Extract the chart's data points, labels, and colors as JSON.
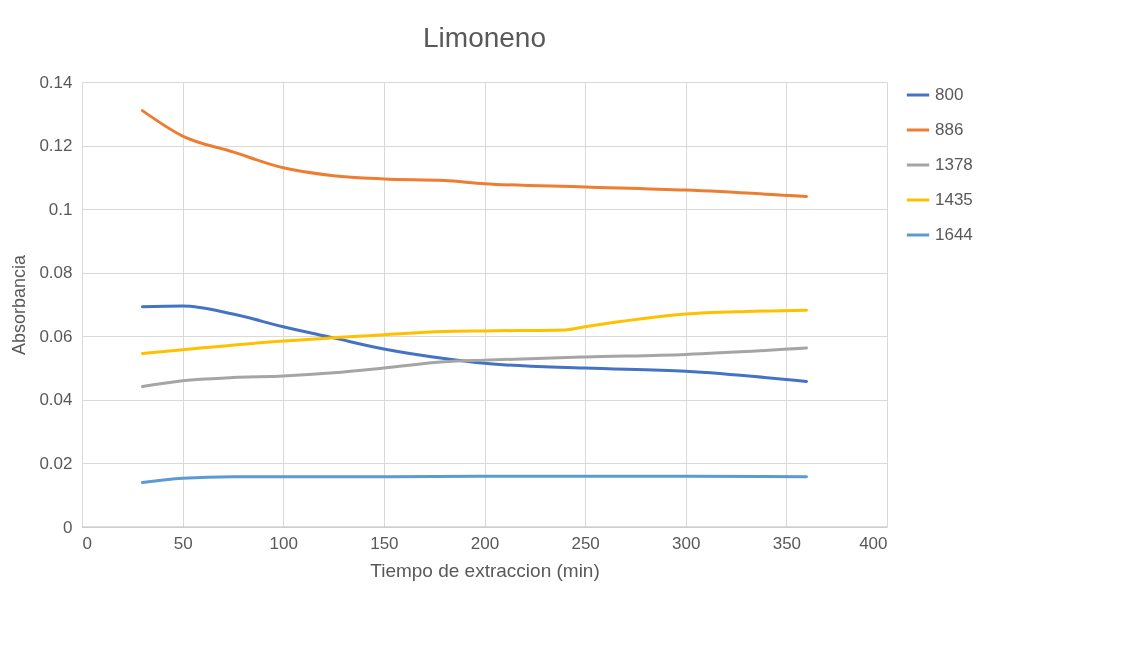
{
  "chart_data": {
    "type": "line",
    "title": "Limoneno",
    "xlabel": "Tiempo de extraccion (min)",
    "ylabel": "Absorbancia",
    "xlim": [
      0,
      400
    ],
    "xticks": [
      0,
      50,
      100,
      150,
      200,
      250,
      300,
      350,
      400
    ],
    "ylim": [
      0,
      0.14
    ],
    "yticks": [
      0,
      0.02,
      0.04,
      0.06,
      0.08,
      0.1,
      0.12,
      0.14
    ],
    "grid": true,
    "legend": "right",
    "marker": "none",
    "line_style": "solid",
    "series": [
      {
        "name": "800",
        "color": "#4472c4",
        "x": [
          30,
          50,
          75,
          100,
          125,
          150,
          180,
          200,
          250,
          300,
          360
        ],
        "values": [
          0.0693,
          0.0695,
          0.067,
          0.063,
          0.0595,
          0.056,
          0.053,
          0.0515,
          0.05,
          0.049,
          0.0458
        ]
      },
      {
        "name": "886",
        "color": "#ed7d31",
        "x": [
          30,
          50,
          75,
          100,
          125,
          150,
          180,
          200,
          250,
          300,
          360
        ],
        "values": [
          0.131,
          0.123,
          0.118,
          0.113,
          0.1105,
          0.1095,
          0.109,
          0.108,
          0.107,
          0.106,
          0.104
        ]
      },
      {
        "name": "1378",
        "color": "#a5a5a5",
        "x": [
          30,
          50,
          75,
          100,
          125,
          150,
          180,
          200,
          250,
          300,
          360
        ],
        "values": [
          0.0442,
          0.046,
          0.047,
          0.0475,
          0.0485,
          0.05,
          0.052,
          0.0525,
          0.0535,
          0.0543,
          0.0563
        ]
      },
      {
        "name": "1435",
        "color": "#ffc000",
        "x": [
          30,
          50,
          100,
          150,
          180,
          200,
          240,
          250,
          300,
          330,
          360
        ],
        "values": [
          0.0546,
          0.0558,
          0.0585,
          0.0605,
          0.0615,
          0.0617,
          0.062,
          0.063,
          0.067,
          0.0678,
          0.0682
        ]
      },
      {
        "name": "1644",
        "color": "#5b9bd5",
        "x": [
          30,
          50,
          75,
          150,
          200,
          300,
          360
        ],
        "values": [
          0.014,
          0.0153,
          0.0158,
          0.0158,
          0.016,
          0.016,
          0.0158
        ]
      }
    ]
  }
}
